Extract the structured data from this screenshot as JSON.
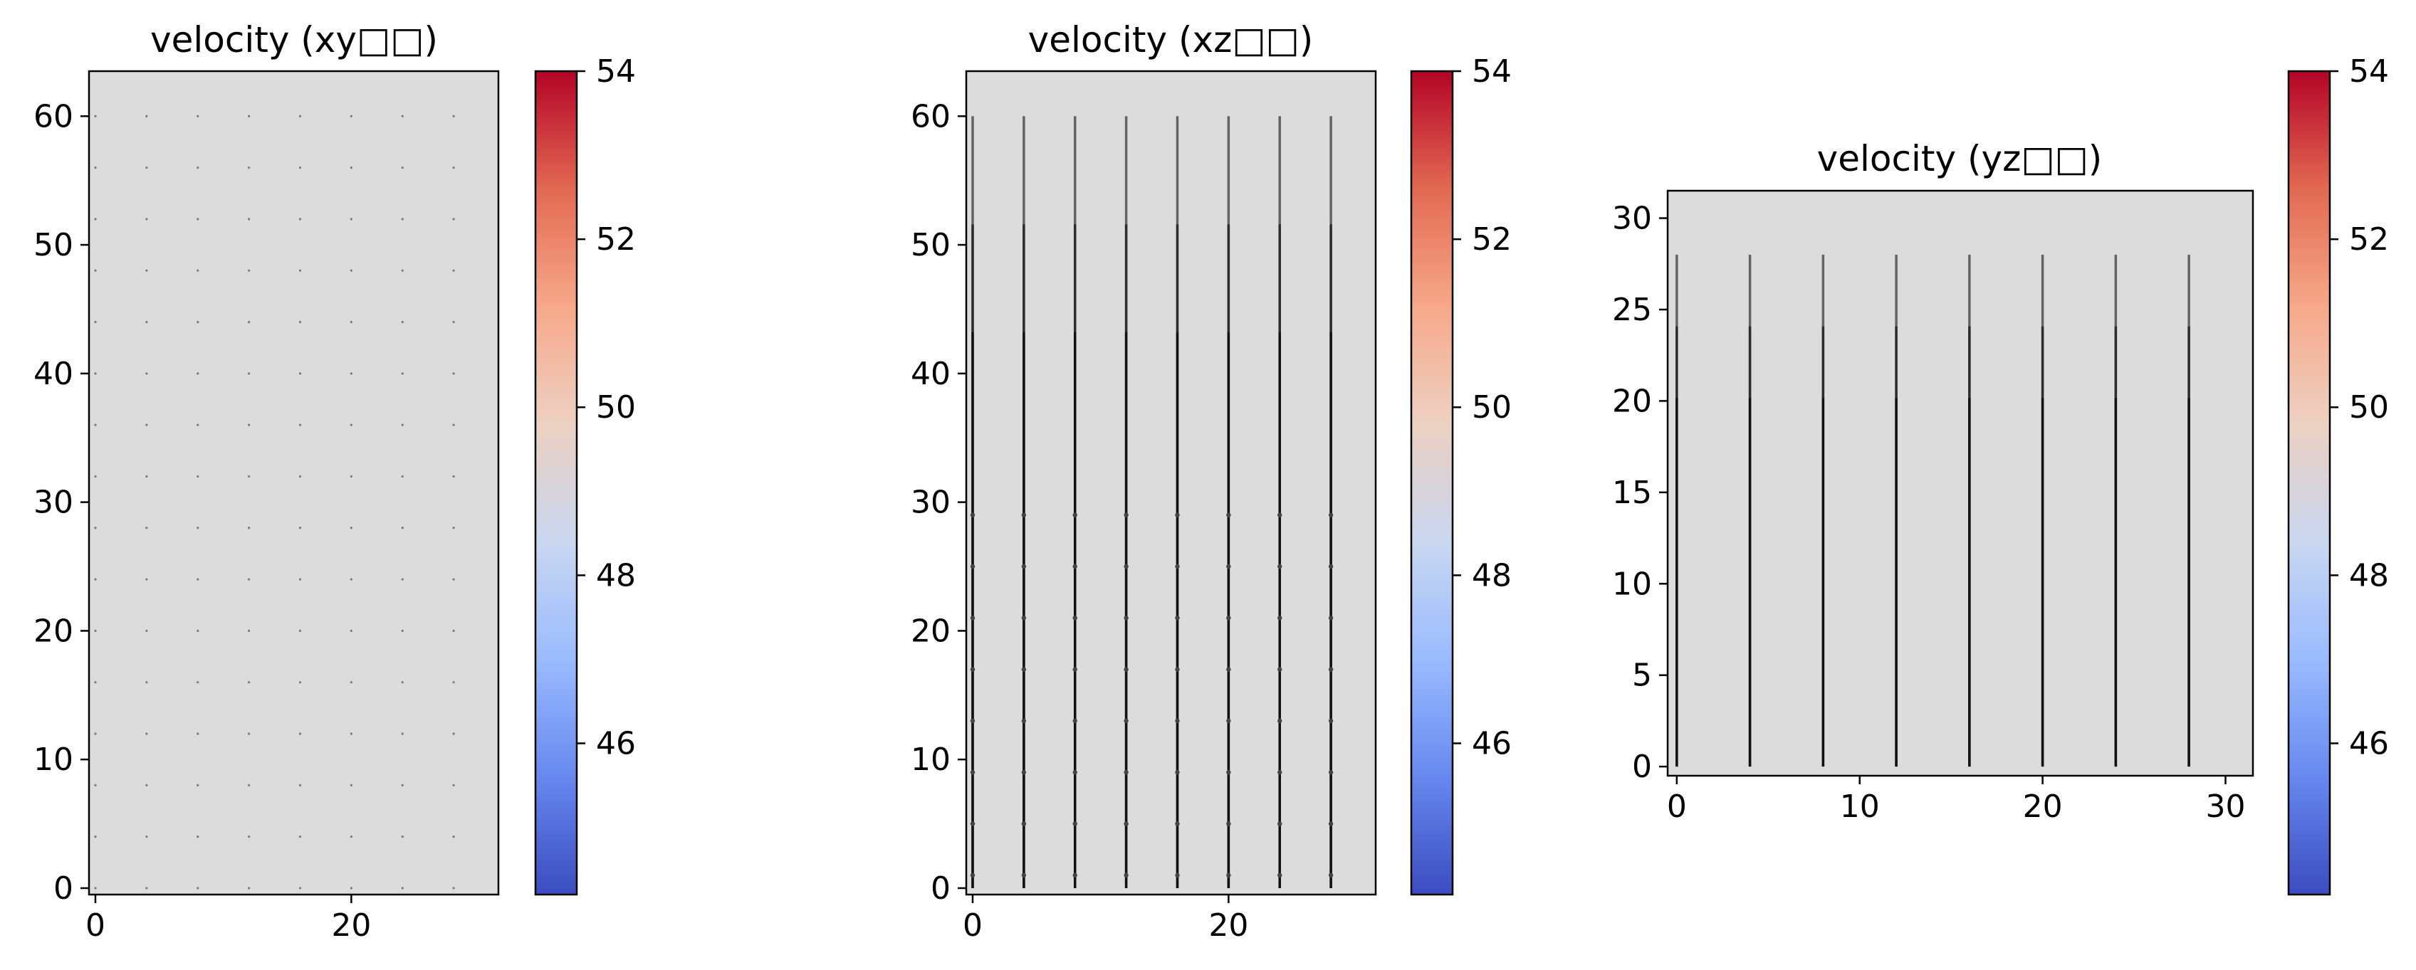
{
  "colormap": {
    "name": "coolwarm",
    "stops": [
      "#3b4cc0",
      "#6788ee",
      "#9abbff",
      "#c9d7f0",
      "#edd1c2",
      "#f7a889",
      "#e26952",
      "#b40426"
    ],
    "range": [
      44.2,
      54.0
    ],
    "ticks": [
      "46",
      "48",
      "50",
      "52",
      "54"
    ]
  },
  "chart_data": [
    {
      "type": "heatmap",
      "title": "velocity (xy□□)",
      "field_value": 49.5,
      "field_color": "#dcdcdc",
      "xlim": [
        -0.5,
        31.5
      ],
      "ylim": [
        -0.5,
        63.5
      ],
      "xticks": [
        0,
        20
      ],
      "yticks": [
        0,
        10,
        20,
        30,
        40,
        50,
        60
      ],
      "quiver": {
        "style": "dots",
        "x": [
          0,
          4,
          8,
          12,
          16,
          20,
          24,
          28
        ],
        "y": [
          0,
          4,
          8,
          12,
          16,
          20,
          24,
          28,
          32,
          36,
          40,
          44,
          48,
          52,
          56,
          60
        ]
      },
      "colorbar_ticks": [
        "46",
        "48",
        "50",
        "52",
        "54"
      ]
    },
    {
      "type": "heatmap",
      "title": "velocity (xz□□)",
      "field_value": 49.5,
      "field_color": "#dcdcdc",
      "xlim": [
        -0.5,
        31.5
      ],
      "ylim": [
        -0.5,
        63.5
      ],
      "xticks": [
        0,
        20
      ],
      "yticks": [
        0,
        10,
        20,
        30,
        40,
        50,
        60
      ],
      "quiver": {
        "style": "vertical",
        "x": [
          0,
          4,
          8,
          12,
          16,
          20,
          24,
          28
        ],
        "y_start": 0,
        "y_end": 60,
        "marker_y": [
          1,
          5,
          9,
          13,
          17,
          21,
          25,
          29
        ]
      },
      "colorbar_ticks": [
        "46",
        "48",
        "50",
        "52",
        "54"
      ]
    },
    {
      "type": "heatmap",
      "title": "velocity (yz□□)",
      "field_value": 49.5,
      "field_color": "#dcdcdc",
      "xlim": [
        -0.5,
        31.5
      ],
      "ylim": [
        -0.5,
        31.5
      ],
      "xticks": [
        0,
        10,
        20,
        30
      ],
      "yticks": [
        0,
        5,
        10,
        15,
        20,
        25,
        30
      ],
      "quiver": {
        "style": "vertical",
        "x": [
          0,
          4,
          8,
          12,
          16,
          20,
          24,
          28
        ],
        "y_start": 0,
        "y_end": 28,
        "marker_y": []
      },
      "colorbar_ticks": [
        "46",
        "48",
        "50",
        "52",
        "54"
      ]
    }
  ]
}
